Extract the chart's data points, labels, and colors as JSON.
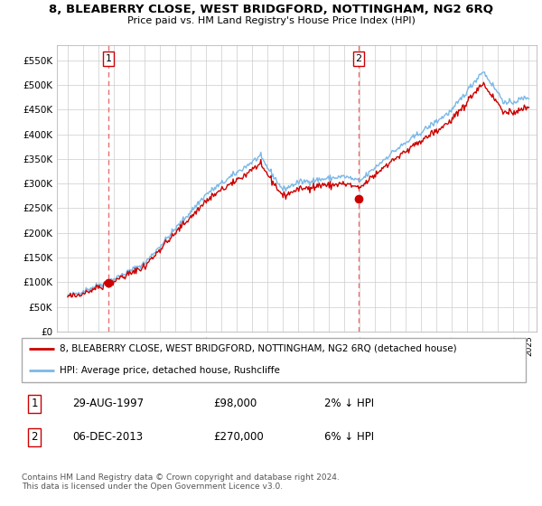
{
  "title": "8, BLEABERRY CLOSE, WEST BRIDGFORD, NOTTINGHAM, NG2 6RQ",
  "subtitle": "Price paid vs. HM Land Registry's House Price Index (HPI)",
  "ylim": [
    0,
    580000
  ],
  "yticks": [
    0,
    50000,
    100000,
    150000,
    200000,
    250000,
    300000,
    350000,
    400000,
    450000,
    500000,
    550000
  ],
  "ytick_labels": [
    "£0",
    "£50K",
    "£100K",
    "£150K",
    "£200K",
    "£250K",
    "£300K",
    "£350K",
    "£400K",
    "£450K",
    "£500K",
    "£550K"
  ],
  "hpi_color": "#7ab8e8",
  "price_color": "#cc0000",
  "marker_color": "#cc0000",
  "sale1_date": 1997.66,
  "sale1_price": 98000,
  "sale2_date": 2013.92,
  "sale2_price": 270000,
  "legend_label1": "8, BLEABERRY CLOSE, WEST BRIDGFORD, NOTTINGHAM, NG2 6RQ (detached house)",
  "legend_label2": "HPI: Average price, detached house, Rushcliffe",
  "table_row1": [
    "1",
    "29-AUG-1997",
    "£98,000",
    "2% ↓ HPI"
  ],
  "table_row2": [
    "2",
    "06-DEC-2013",
    "£270,000",
    "6% ↓ HPI"
  ],
  "footer": "Contains HM Land Registry data © Crown copyright and database right 2024.\nThis data is licensed under the Open Government Licence v3.0.",
  "background_color": "#ffffff",
  "grid_color": "#cccccc"
}
